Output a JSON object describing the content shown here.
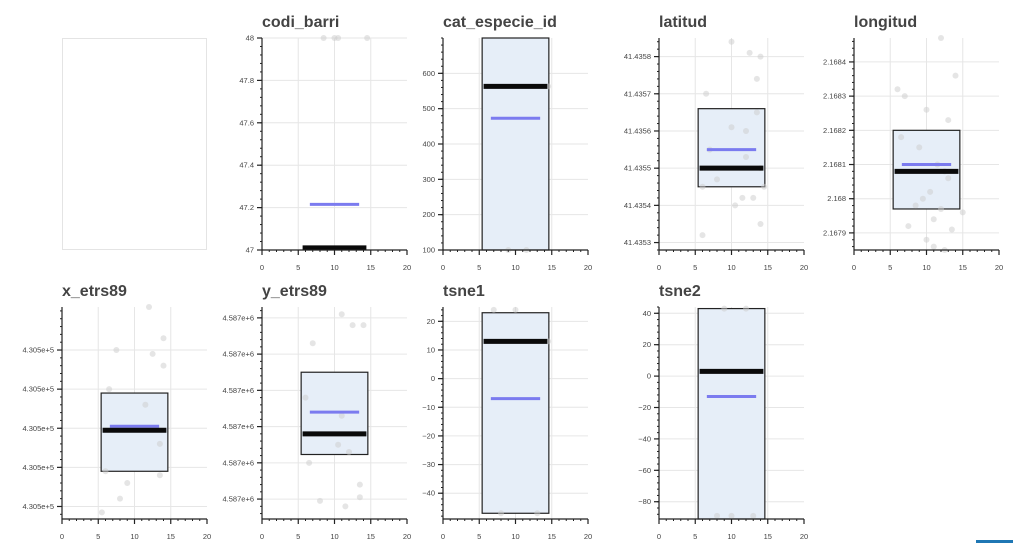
{
  "chart_data": [
    {
      "type": "box",
      "title": "",
      "empty": true
    },
    {
      "type": "box",
      "title": "codi_barri",
      "xlim": [
        0,
        20
      ],
      "ylim": [
        47,
        48
      ],
      "xticks": [
        "0",
        "5",
        "10",
        "15",
        "20"
      ],
      "yticks": [
        {
          "v": 47,
          "label": "47"
        },
        {
          "v": 47.2,
          "label": "47.2"
        },
        {
          "v": 47.4,
          "label": "47.4"
        },
        {
          "v": 47.6,
          "label": "47.6"
        },
        {
          "v": 47.8,
          "label": "47.8"
        },
        {
          "v": 48,
          "label": "48"
        }
      ],
      "box": null,
      "median": 47.01,
      "mean": 47.215,
      "points": [
        [
          8.5,
          48
        ],
        [
          10.5,
          48
        ],
        [
          14.5,
          48
        ],
        [
          10,
          48
        ]
      ]
    },
    {
      "type": "box",
      "title": "cat_especie_id",
      "xlim": [
        0,
        20
      ],
      "ylim": [
        100,
        700
      ],
      "xticks": [
        "0",
        "5",
        "10",
        "15",
        "20"
      ],
      "yticks": [
        {
          "v": 100,
          "label": "100"
        },
        {
          "v": 200,
          "label": "200"
        },
        {
          "v": 300,
          "label": "300"
        },
        {
          "v": 400,
          "label": "400"
        },
        {
          "v": 500,
          "label": "500"
        },
        {
          "v": 600,
          "label": "600"
        }
      ],
      "box": [
        100,
        700
      ],
      "median": 563,
      "mean": 473,
      "points": [
        [
          14.5,
          563
        ],
        [
          9,
          100
        ],
        [
          11.5,
          100
        ]
      ]
    },
    {
      "type": "box",
      "title": "latitud",
      "xlim": [
        0,
        20
      ],
      "ylim": [
        41.43528,
        41.43585
      ],
      "xticks": [
        "0",
        "5",
        "10",
        "15",
        "20"
      ],
      "yticks": [
        {
          "v": 41.4353,
          "label": "41.4353"
        },
        {
          "v": 41.4354,
          "label": "41.4354"
        },
        {
          "v": 41.4355,
          "label": "41.4355"
        },
        {
          "v": 41.4356,
          "label": "41.4356"
        },
        {
          "v": 41.4357,
          "label": "41.4357"
        },
        {
          "v": 41.4358,
          "label": "41.4358"
        }
      ],
      "box": [
        41.43545,
        41.43566
      ],
      "median": 41.4355,
      "mean": 41.43555,
      "points": [
        [
          10,
          41.43584
        ],
        [
          12.5,
          41.43581
        ],
        [
          14,
          41.4358
        ],
        [
          13.5,
          41.43574
        ],
        [
          6.5,
          41.4357
        ],
        [
          13.5,
          41.43565
        ],
        [
          10,
          41.43561
        ],
        [
          12,
          41.4356
        ],
        [
          7,
          41.43555
        ],
        [
          12,
          41.43553
        ],
        [
          14,
          41.4355
        ],
        [
          8,
          41.43547
        ],
        [
          14.5,
          41.43545
        ],
        [
          6,
          41.43545
        ],
        [
          11.5,
          41.43542
        ],
        [
          13,
          41.43542
        ],
        [
          10.5,
          41.4354
        ],
        [
          14,
          41.43535
        ],
        [
          6,
          41.43532
        ]
      ]
    },
    {
      "type": "box",
      "title": "longitud",
      "xlim": [
        0,
        20
      ],
      "ylim": [
        2.16785,
        2.16847
      ],
      "xticks": [
        "0",
        "5",
        "10",
        "15",
        "20"
      ],
      "yticks": [
        {
          "v": 2.1679,
          "label": "2.1679"
        },
        {
          "v": 2.168,
          "label": "2.168"
        },
        {
          "v": 2.1681,
          "label": "2.1681"
        },
        {
          "v": 2.1682,
          "label": "2.1682"
        },
        {
          "v": 2.1683,
          "label": "2.1683"
        },
        {
          "v": 2.1684,
          "label": "2.1684"
        }
      ],
      "box": [
        2.16797,
        2.1682
      ],
      "median": 2.16808,
      "mean": 2.1681,
      "points": [
        [
          12,
          2.16847
        ],
        [
          14,
          2.16836
        ],
        [
          6,
          2.16832
        ],
        [
          7,
          2.1683
        ],
        [
          10,
          2.16826
        ],
        [
          13,
          2.16823
        ],
        [
          6.5,
          2.16818
        ],
        [
          9,
          2.16815
        ],
        [
          11.5,
          2.1681
        ],
        [
          12.5,
          2.16808
        ],
        [
          13,
          2.16806
        ],
        [
          10.5,
          2.16802
        ],
        [
          9.5,
          2.168
        ],
        [
          8.5,
          2.16798
        ],
        [
          12,
          2.16797
        ],
        [
          15,
          2.16796
        ],
        [
          11,
          2.16794
        ],
        [
          7.5,
          2.16792
        ],
        [
          13.5,
          2.16791
        ],
        [
          10,
          2.16788
        ],
        [
          11,
          2.16786
        ],
        [
          12.5,
          2.16785
        ]
      ]
    },
    {
      "type": "box",
      "title": "x_etrs89",
      "xlim": [
        0,
        20
      ],
      "ylim": [
        -0.12,
        5.3
      ],
      "xticks": [
        "0",
        "5",
        "10",
        "15",
        "20"
      ],
      "yticks": [
        {
          "v": 0.2,
          "label": "4.305e+5"
        },
        {
          "v": 1.2,
          "label": "4.305e+5"
        },
        {
          "v": 2.2,
          "label": "4.305e+5"
        },
        {
          "v": 3.2,
          "label": "4.305e+5"
        },
        {
          "v": 4.2,
          "label": "4.305e+5"
        }
      ],
      "box": [
        1.1,
        3.1
      ],
      "median": 2.15,
      "mean": 2.25,
      "points": [
        [
          12,
          5.3
        ],
        [
          14,
          4.5
        ],
        [
          7.5,
          4.2
        ],
        [
          12.5,
          4.1
        ],
        [
          14,
          3.8
        ],
        [
          6.5,
          3.2
        ],
        [
          11.5,
          2.8
        ],
        [
          13.5,
          1.8
        ],
        [
          6,
          1.1
        ],
        [
          13.5,
          1.0
        ],
        [
          9,
          0.8
        ],
        [
          8,
          0.4
        ],
        [
          5.5,
          0.05
        ]
      ]
    },
    {
      "type": "box",
      "title": "y_etrs89",
      "xlim": [
        0,
        20
      ],
      "ylim": [
        -0.35,
        5.5
      ],
      "xticks": [
        "0",
        "5",
        "10",
        "15",
        "20"
      ],
      "yticks": [
        {
          "v": 0.2,
          "label": "4.587e+6"
        },
        {
          "v": 1.2,
          "label": "4.587e+6"
        },
        {
          "v": 2.2,
          "label": "4.587e+6"
        },
        {
          "v": 3.2,
          "label": "4.587e+6"
        },
        {
          "v": 4.2,
          "label": "4.587e+6"
        },
        {
          "v": 5.2,
          "label": "4.587e+6"
        }
      ],
      "box": [
        1.43,
        3.7
      ],
      "median": 2.0,
      "mean": 2.6,
      "points": [
        [
          11,
          5.3
        ],
        [
          12.5,
          5.0
        ],
        [
          14,
          5.0
        ],
        [
          7,
          4.5
        ],
        [
          6,
          3.0
        ],
        [
          11,
          2.5
        ],
        [
          10.5,
          1.7
        ],
        [
          12,
          1.5
        ],
        [
          6.5,
          1.2
        ],
        [
          13.5,
          0.6
        ],
        [
          13.5,
          0.25
        ],
        [
          8,
          0.15
        ],
        [
          11.5,
          0.0
        ]
      ]
    },
    {
      "type": "box",
      "title": "tsne1",
      "xlim": [
        0,
        20
      ],
      "ylim": [
        -49,
        25
      ],
      "xticks": [
        "0",
        "5",
        "10",
        "15",
        "20"
      ],
      "yticks": [
        {
          "v": 20,
          "label": "20"
        },
        {
          "v": 10,
          "label": "10"
        },
        {
          "v": 0,
          "label": "0"
        },
        {
          "v": -10,
          "label": "−10"
        },
        {
          "v": -20,
          "label": "−20"
        },
        {
          "v": -30,
          "label": "−30"
        },
        {
          "v": -40,
          "label": "−40"
        }
      ],
      "box": [
        -47,
        23
      ],
      "median": 13,
      "mean": -7,
      "points": [
        [
          7,
          24
        ],
        [
          10,
          24
        ],
        [
          14.5,
          13
        ],
        [
          13,
          -47
        ],
        [
          8,
          -47
        ]
      ]
    },
    {
      "type": "box",
      "title": "tsne2",
      "xlim": [
        0,
        20
      ],
      "ylim": [
        -91,
        44
      ],
      "xticks": [
        "0",
        "5",
        "10",
        "15",
        "20"
      ],
      "yticks": [
        {
          "v": 40,
          "label": "40"
        },
        {
          "v": 20,
          "label": "20"
        },
        {
          "v": 0,
          "label": "0"
        },
        {
          "v": -20,
          "label": "−20"
        },
        {
          "v": -40,
          "label": "−40"
        },
        {
          "v": -60,
          "label": "−60"
        },
        {
          "v": -80,
          "label": "−80"
        }
      ],
      "box": [
        -91,
        43
      ],
      "median": 3,
      "mean": -13,
      "points": [
        [
          9,
          43
        ],
        [
          12,
          43
        ],
        [
          8,
          -89
        ],
        [
          10,
          -89
        ],
        [
          13,
          -89
        ]
      ]
    }
  ]
}
